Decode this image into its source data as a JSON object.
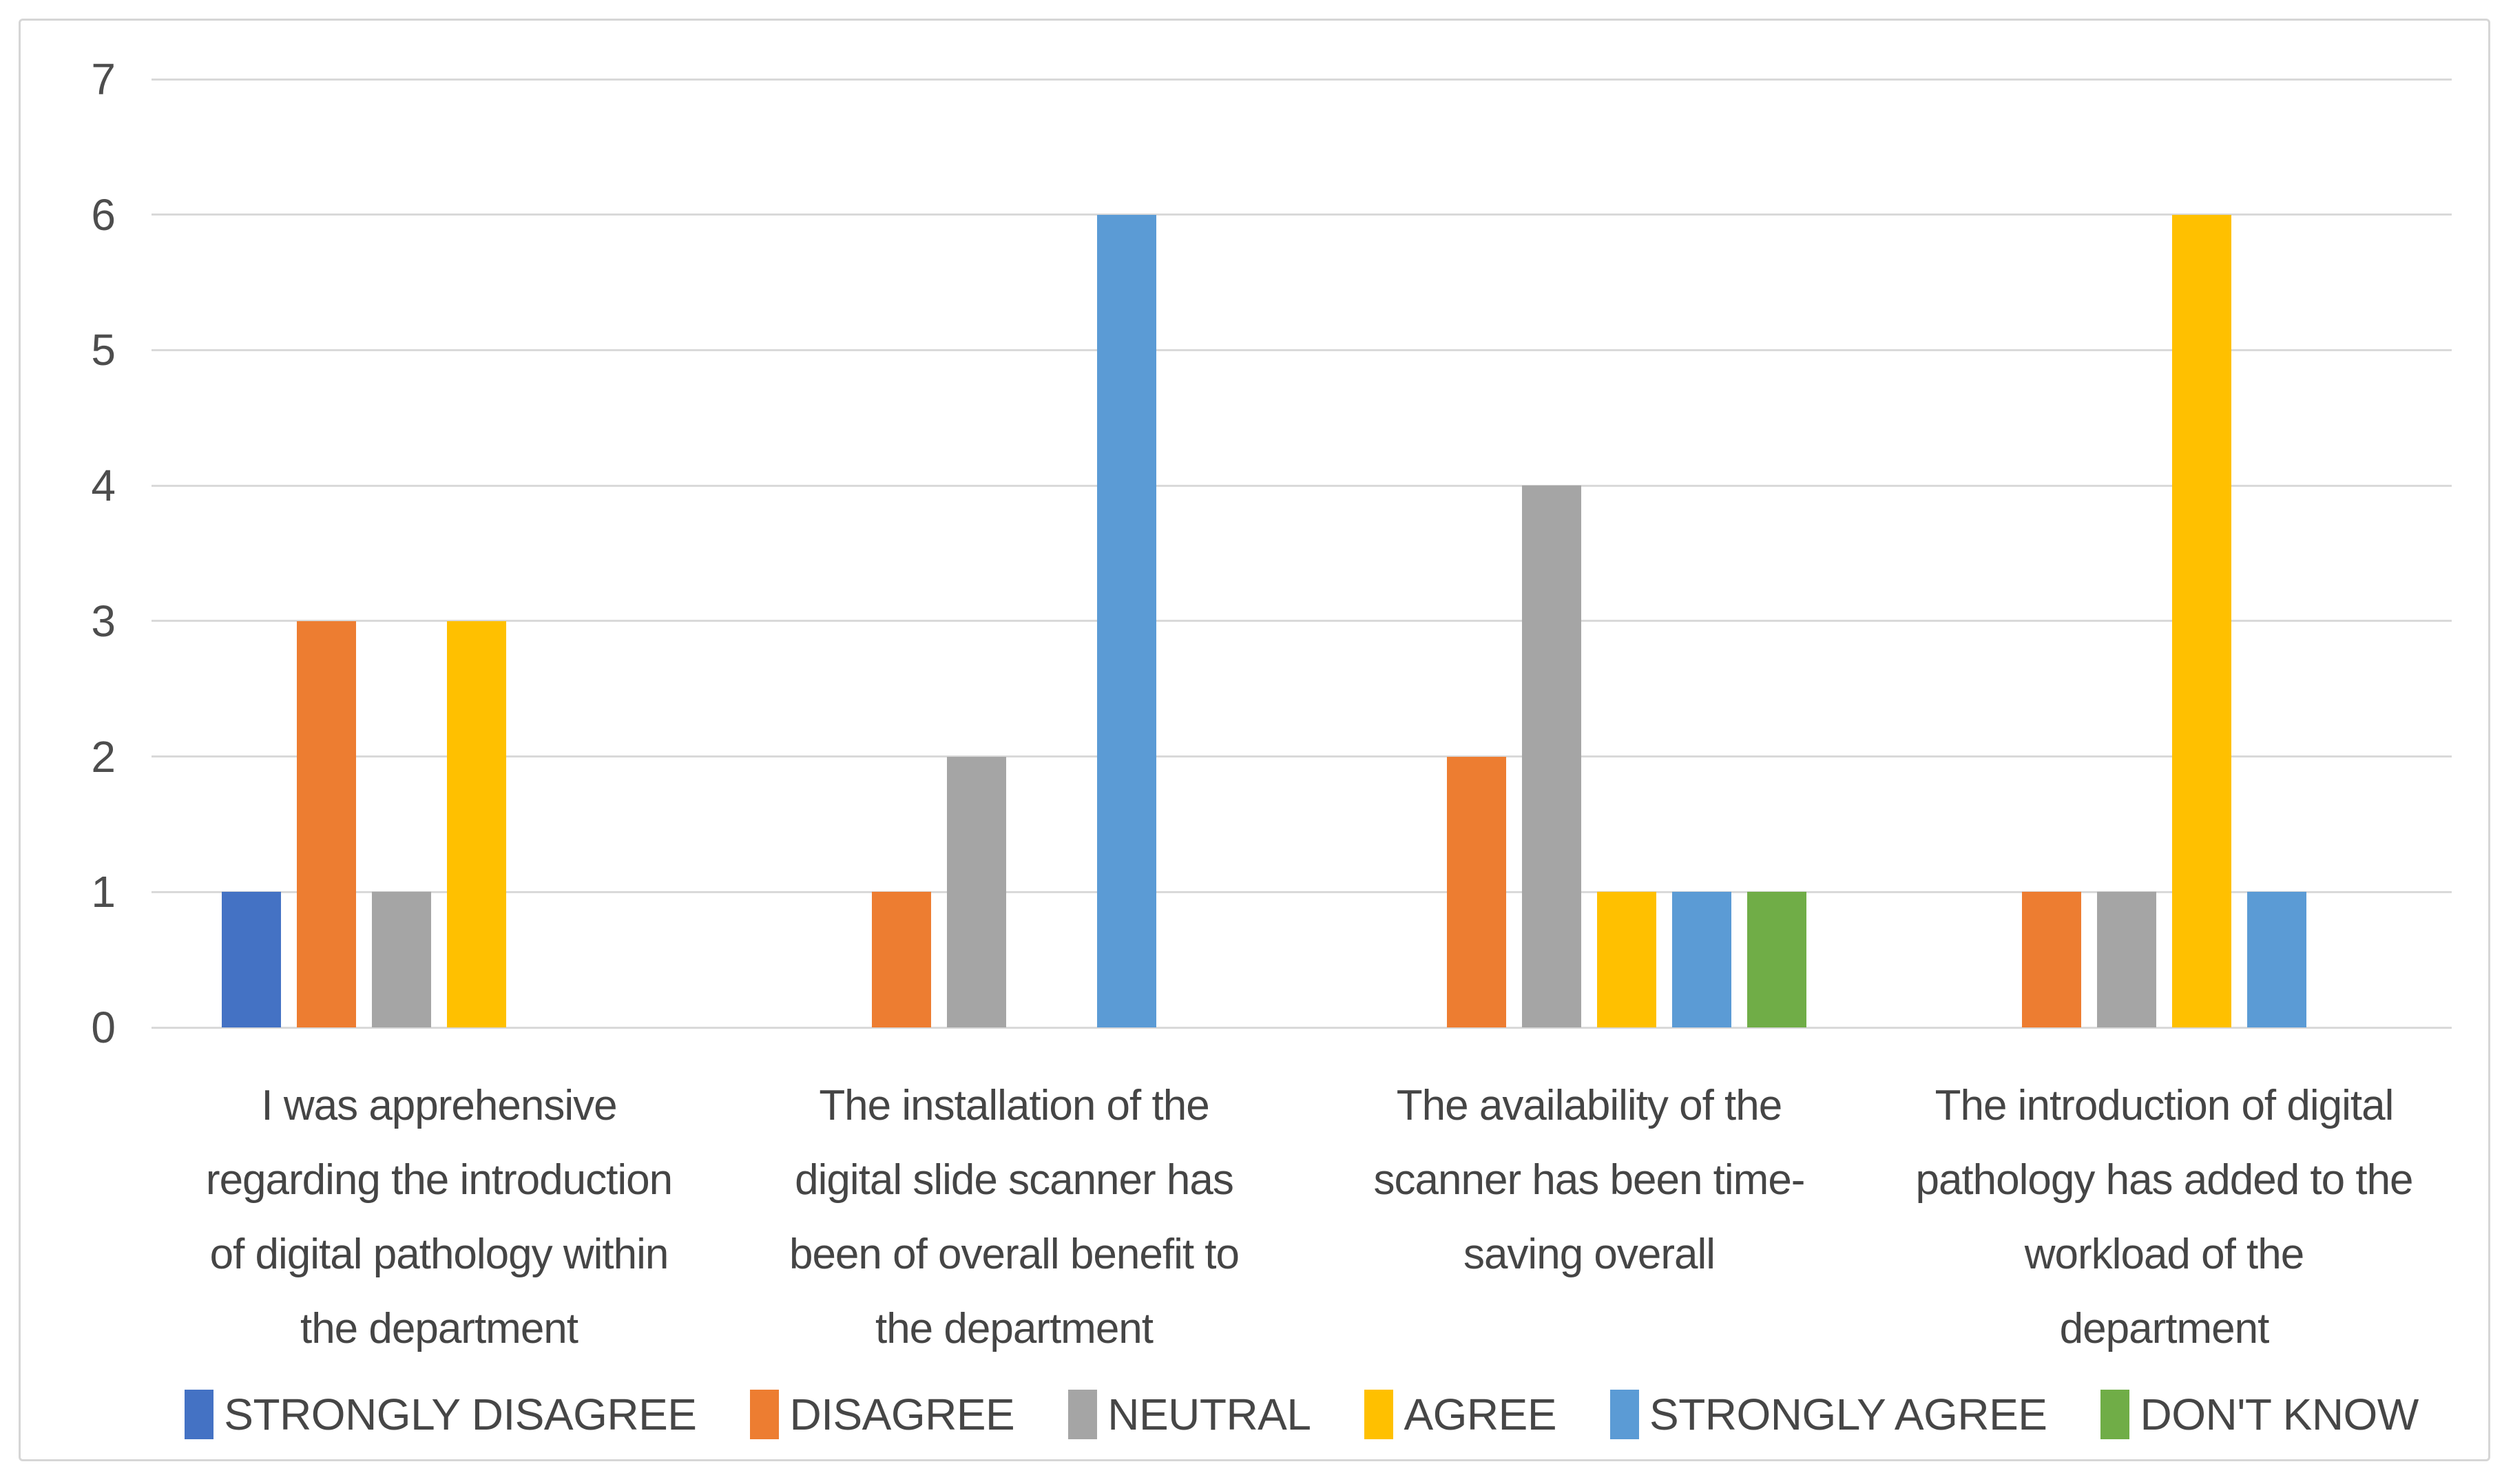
{
  "chart_data": {
    "type": "bar",
    "title": "",
    "xlabel": "",
    "ylabel": "",
    "ylim": [
      0,
      7
    ],
    "yticks": [
      0,
      1,
      2,
      3,
      4,
      5,
      6,
      7
    ],
    "grid": true,
    "legend_position": "bottom",
    "categories": [
      "I was apprehensive\nregarding the introduction\nof digital pathology within\nthe department",
      "The installation of the\ndigital slide scanner has\nbeen of overall benefit to\nthe department",
      "The availability of the\nscanner has been time-\nsaving overall",
      "The introduction of digital\npathology has added to the\nworkload of the\ndepartment"
    ],
    "series": [
      {
        "name": "STRONGLY DISAGREE",
        "color": "#4472C4",
        "values": [
          1,
          0,
          0,
          0
        ]
      },
      {
        "name": "DISAGREE",
        "color": "#ED7D31",
        "values": [
          3,
          1,
          2,
          1
        ]
      },
      {
        "name": "NEUTRAL",
        "color": "#A5A5A5",
        "values": [
          1,
          2,
          4,
          1
        ]
      },
      {
        "name": "AGREE",
        "color": "#FFC000",
        "values": [
          3,
          0,
          1,
          6
        ]
      },
      {
        "name": "STRONGLY AGREE",
        "color": "#5B9BD5",
        "values": [
          0,
          6,
          1,
          1
        ]
      },
      {
        "name": "DON'T KNOW",
        "color": "#70AD47",
        "values": [
          0,
          0,
          1,
          0
        ]
      }
    ],
    "colors": {
      "gridline": "#d9d9d9",
      "frame_border": "#d6d6d6",
      "text": "#4d4d4d",
      "background": "#ffffff"
    }
  }
}
